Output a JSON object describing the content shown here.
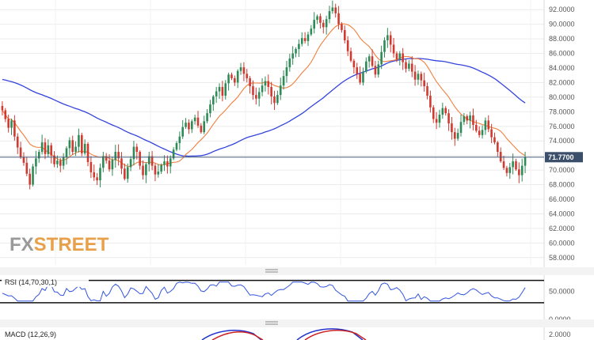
{
  "chart_data": [
    {
      "type": "candlestick",
      "ylim": [
        57,
        93
      ],
      "yticks": [
        58,
        60,
        62,
        64,
        66,
        68,
        70,
        72,
        74,
        76,
        78,
        80,
        82,
        84,
        86,
        88,
        90,
        92
      ],
      "ytick_labels": [
        "58.0000",
        "60.0000",
        "62.0000",
        "64.0000",
        "66.0000",
        "68.0000",
        "70.0000",
        "72.0000",
        "74.0000",
        "76.0000",
        "78.0000",
        "80.0000",
        "82.0000",
        "84.0000",
        "86.0000",
        "88.0000",
        "90.0000",
        "92.0000"
      ],
      "current_price": 71.77,
      "current_price_label": "71.7700",
      "colors": {
        "up": "#2e8b57",
        "down": "#d03a30",
        "sma50": "#f08040",
        "sma200": "#3344dd",
        "price_line": "#445a78"
      },
      "closes": [
        78.2,
        77.0,
        75.8,
        76.8,
        74.6,
        73.1,
        71.8,
        71.0,
        69.5,
        68.0,
        70.5,
        71.6,
        72.5,
        73.8,
        72.2,
        73.4,
        72.0,
        70.8,
        71.3,
        70.6,
        71.8,
        73.0,
        74.1,
        72.5,
        73.2,
        74.8,
        72.3,
        73.6,
        71.1,
        69.7,
        69.0,
        68.6,
        70.3,
        71.9,
        71.3,
        70.1,
        71.4,
        72.5,
        71.6,
        70.2,
        68.8,
        70.4,
        71.5,
        73.2,
        72.5,
        70.6,
        69.3,
        70.8,
        71.9,
        70.6,
        69.4,
        69.8,
        70.7,
        71.2,
        70.5,
        71.6,
        72.8,
        73.7,
        74.6,
        75.9,
        76.5,
        75.6,
        76.7,
        77.2,
        76.1,
        75.2,
        76.7,
        77.8,
        79.0,
        80.1,
        80.8,
        81.4,
        80.2,
        81.9,
        83.1,
        82.6,
        82.0,
        83.6,
        84.1,
        83.2,
        82.6,
        81.5,
        80.3,
        79.8,
        80.7,
        81.6,
        82.2,
        81.4,
        80.1,
        79.2,
        80.3,
        81.6,
        82.9,
        84.1,
        85.3,
        86.0,
        86.6,
        87.3,
        88.1,
        87.7,
        88.6,
        89.4,
        90.6,
        91.1,
        90.2,
        89.6,
        90.7,
        91.8,
        92.3,
        91.5,
        90.0,
        89.2,
        87.8,
        86.3,
        85.0,
        84.1,
        83.2,
        82.0,
        83.5,
        84.9,
        85.6,
        84.3,
        83.1,
        84.5,
        86.2,
        87.8,
        88.5,
        87.2,
        86.0,
        85.2,
        86.0,
        84.8,
        83.9,
        84.6,
        83.5,
        82.4,
        83.2,
        82.3,
        81.5,
        80.2,
        78.6,
        77.0,
        76.5,
        77.6,
        78.5,
        77.8,
        76.4,
        75.2,
        74.3,
        75.1,
        76.6,
        77.4,
        76.8,
        77.5,
        76.2,
        75.4,
        74.8,
        75.5,
        76.8,
        75.6,
        74.5,
        73.8,
        72.5,
        71.2,
        70.3,
        69.6,
        70.4,
        71.2,
        70.1,
        69.3,
        70.6,
        71.8
      ]
    },
    {
      "type": "line",
      "title": "RSI (14,70,30,1)",
      "ylim": [
        0,
        78
      ],
      "yticks": [
        0,
        50
      ],
      "ytick_labels": [
        "0.0000",
        "50.0000"
      ],
      "bounds": [
        70,
        30
      ]
    },
    {
      "type": "line",
      "title": "MACD (12,26,9)",
      "yticks": [
        2
      ],
      "ytick_labels": [
        "2.0000"
      ]
    }
  ],
  "branding": {
    "logo_fx": "FX",
    "logo_street": "STREET"
  }
}
